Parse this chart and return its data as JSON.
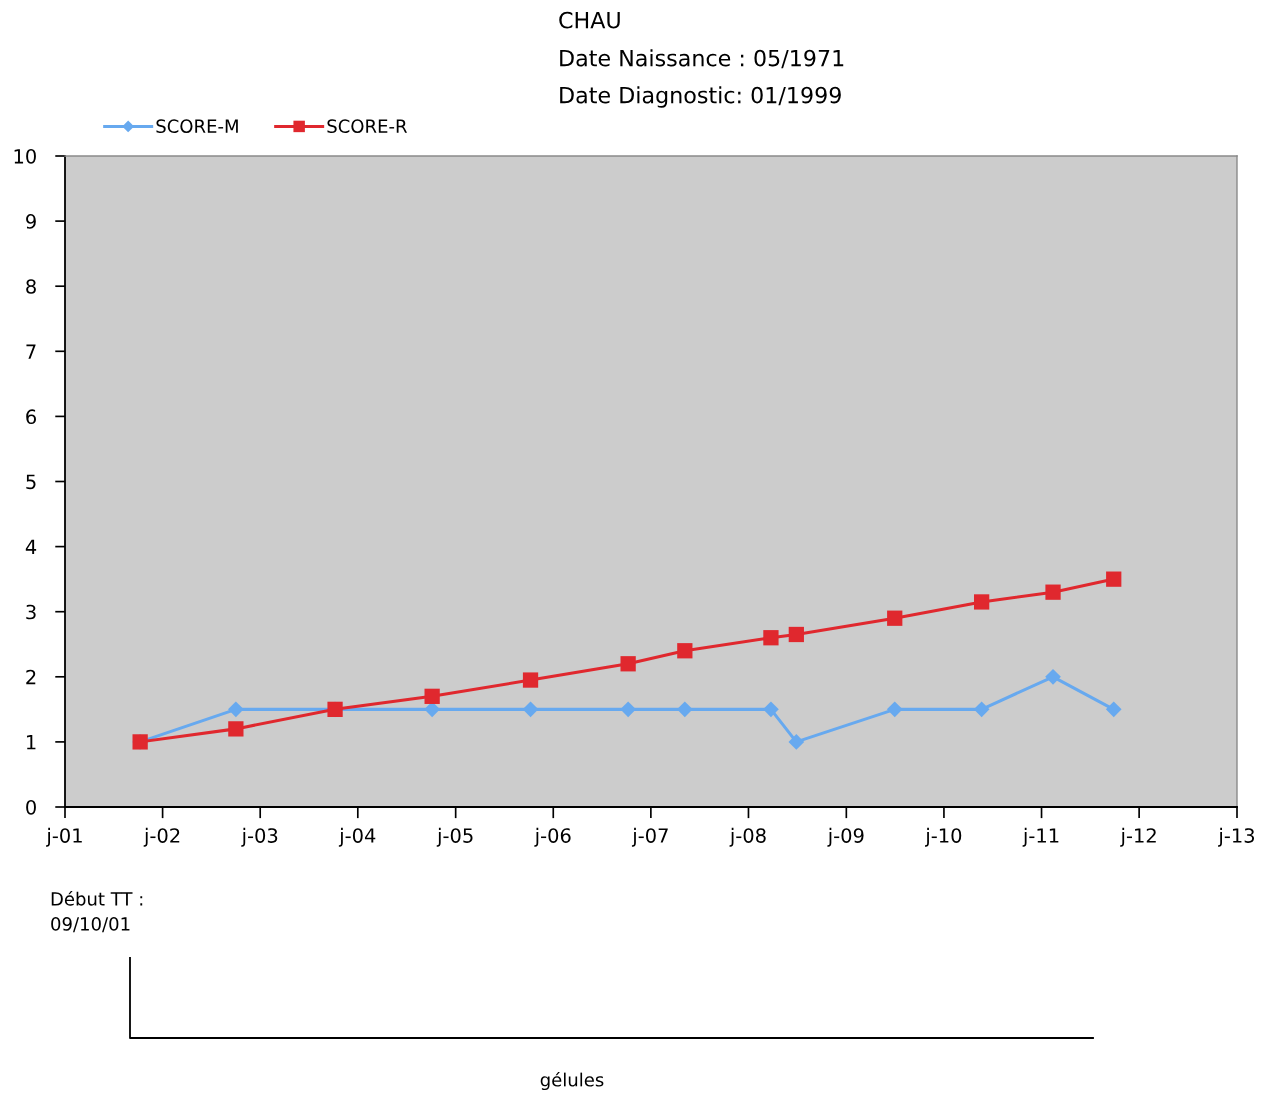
{
  "chart_data": {
    "type": "line",
    "title": "CHAU",
    "annotations": [
      "Date Naissance : 05/1971",
      "Date Diagnostic: 01/1999",
      "Début TT :\n09/10/01",
      "gélules"
    ],
    "x": [
      "2001-10-09",
      "2002-10-02",
      "2003-10-08",
      "2004-10-05",
      "2005-10-08",
      "2006-10-08",
      "2007-05-08",
      "2008-03-25",
      "2008-06-28",
      "2009-07-01",
      "2010-05-22",
      "2011-02-13",
      "2011-09-28"
    ],
    "series": [
      {
        "name": "SCORE-M",
        "color": "#67a9ef",
        "marker": "diamond",
        "values": [
          1,
          1.5,
          1.5,
          1.5,
          1.5,
          1.5,
          1.5,
          1.5,
          1,
          1.5,
          1.5,
          2,
          1.5
        ]
      },
      {
        "name": "SCORE-R",
        "color": "#e0282e",
        "marker": "square",
        "values": [
          1,
          1.2,
          1.5,
          1.7,
          1.95,
          2.2,
          2.4,
          2.6,
          2.65,
          2.9,
          3.15,
          3.3,
          3.5
        ]
      }
    ],
    "xlim": [
      "2001-01",
      "2013-01"
    ],
    "xticks": [
      {
        "value": "2001-01",
        "label": "j-01"
      },
      {
        "value": "2002-01",
        "label": "j-02"
      },
      {
        "value": "2003-01",
        "label": "j-03"
      },
      {
        "value": "2004-01",
        "label": "j-04"
      },
      {
        "value": "2005-01",
        "label": "j-05"
      },
      {
        "value": "2006-01",
        "label": "j-06"
      },
      {
        "value": "2007-01",
        "label": "j-07"
      },
      {
        "value": "2008-01",
        "label": "j-08"
      },
      {
        "value": "2009-01",
        "label": "j-09"
      },
      {
        "value": "2010-01",
        "label": "j-10"
      },
      {
        "value": "2011-01",
        "label": "j-11"
      },
      {
        "value": "2012-01",
        "label": "j-12"
      },
      {
        "value": "2013-01",
        "label": "j-13"
      }
    ],
    "ylim": [
      0,
      10
    ],
    "yticks": [
      0,
      1,
      2,
      3,
      4,
      5,
      6,
      7,
      8,
      9,
      10
    ],
    "legend": "top left"
  }
}
